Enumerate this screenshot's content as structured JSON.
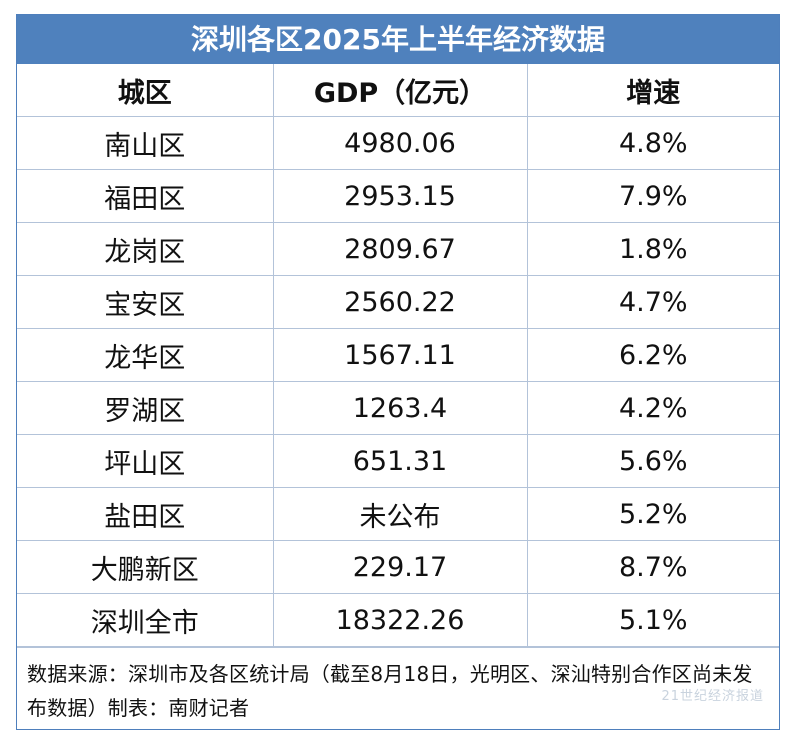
{
  "title": "深圳各区2025年上半年经济数据",
  "headers": [
    "城区",
    "GDP（亿元）",
    "增速"
  ],
  "rows": [
    [
      "南山区",
      "4980.06",
      "4.8%"
    ],
    [
      "福田区",
      "2953.15",
      "7.9%"
    ],
    [
      "龙岗区",
      "2809.67",
      "1.8%"
    ],
    [
      "宝安区",
      "2560.22",
      "4.7%"
    ],
    [
      "龙华区",
      "1567.11",
      "6.2%"
    ],
    [
      "罗湖区",
      "1263.4",
      "4.2%"
    ],
    [
      "坪山区",
      "651.31",
      "5.6%"
    ],
    [
      "盐田区",
      "未公布",
      "5.2%"
    ],
    [
      "大鹏新区",
      "229.17",
      "8.7%"
    ],
    [
      "深圳全市",
      "18322.26",
      "5.1%"
    ]
  ],
  "note": "数据来源：深圳市及各区统计局（截至8月18日，光明区、深汕特别合作区尚未发布数据）制表：南财记者",
  "watermark": "21世纪经济报道"
}
